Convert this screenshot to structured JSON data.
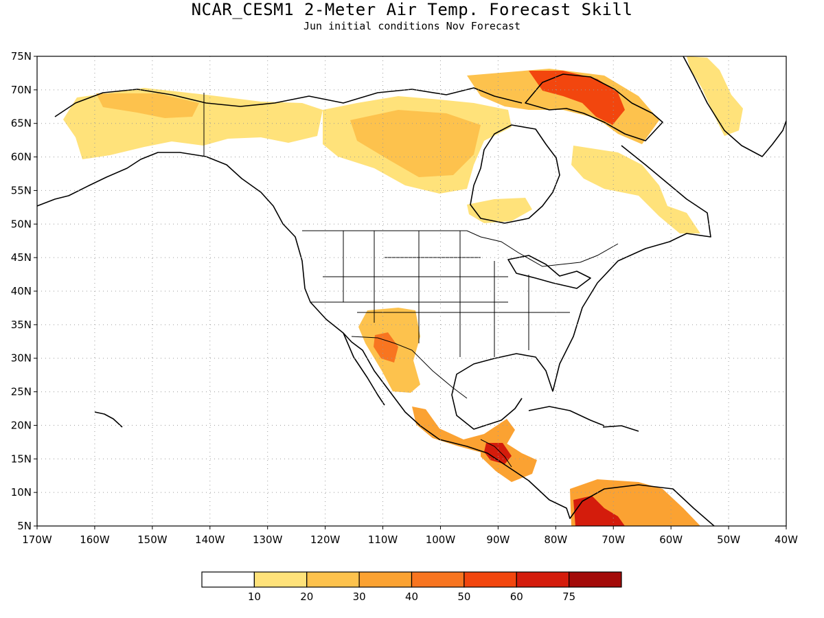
{
  "title": "NCAR_CESM1 2-Meter Air Temp. Forecast Skill",
  "subtitle": "Jun initial conditions  Nov Forecast",
  "map": {
    "lon_range": [
      -170,
      -40
    ],
    "lat_range": [
      5,
      75
    ],
    "grid": true,
    "lat_labels": [
      "75N",
      "70N",
      "65N",
      "60N",
      "55N",
      "50N",
      "45N",
      "40N",
      "35N",
      "30N",
      "25N",
      "20N",
      "15N",
      "10N",
      "5N"
    ],
    "lon_labels": [
      "170W",
      "160W",
      "150W",
      "140W",
      "130W",
      "120W",
      "110W",
      "100W",
      "90W",
      "80W",
      "70W",
      "60W",
      "50W",
      "40W"
    ]
  },
  "colorbar": {
    "colors": [
      "#ffffff",
      "#ffe27a",
      "#fdc24d",
      "#fba232",
      "#f87520",
      "#f2460e",
      "#d41c0c",
      "#a30a08"
    ],
    "labels": [
      "10",
      "20",
      "30",
      "40",
      "50",
      "60",
      "75"
    ]
  },
  "regions": [
    {
      "name": "alaska-yukon",
      "color": "#ffe27a"
    },
    {
      "name": "alaska-core",
      "color": "#fdc24d"
    },
    {
      "name": "nw-territories",
      "color": "#ffe27a"
    },
    {
      "name": "nw-territories-core",
      "color": "#fdc24d"
    },
    {
      "name": "baffin",
      "color": "#fdc24d"
    },
    {
      "name": "baffin-core",
      "color": "#f2460e"
    },
    {
      "name": "labrador",
      "color": "#ffe27a"
    },
    {
      "name": "hudson-south",
      "color": "#ffe27a"
    },
    {
      "name": "greenland",
      "color": "#ffe27a"
    },
    {
      "name": "sw-us",
      "color": "#fdc24d"
    },
    {
      "name": "sw-us-core",
      "color": "#f87520"
    },
    {
      "name": "mexico-south",
      "color": "#fba232"
    },
    {
      "name": "central-america",
      "color": "#fba232"
    },
    {
      "name": "central-america-core",
      "color": "#d41c0c"
    },
    {
      "name": "south-america",
      "color": "#fba232"
    },
    {
      "name": "south-america-core",
      "color": "#d41c0c"
    }
  ]
}
